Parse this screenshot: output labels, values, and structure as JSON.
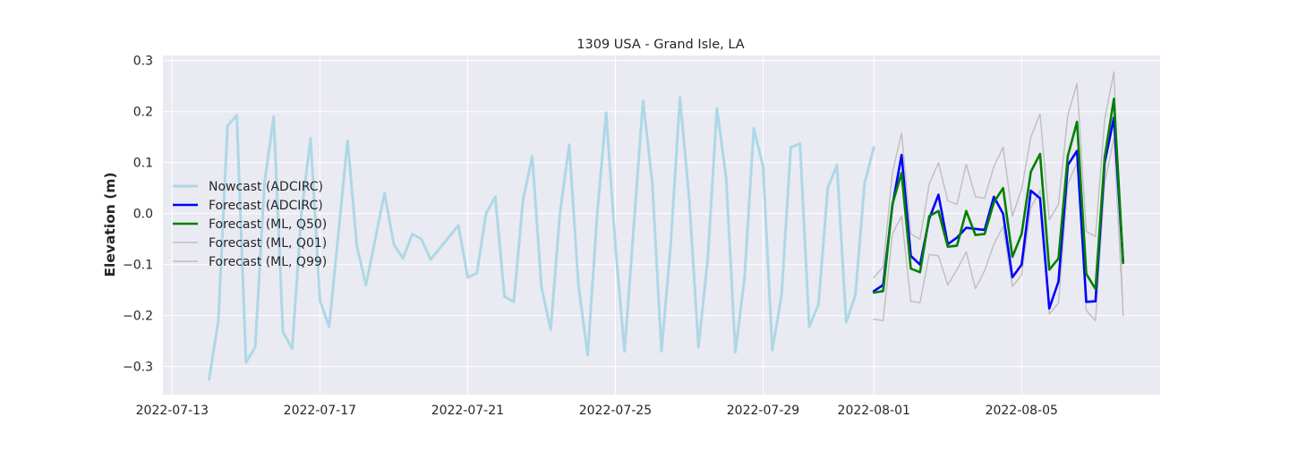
{
  "chart_data": {
    "type": "line",
    "title": "1309 USA - Grand Isle, LA",
    "xlabel": "",
    "ylabel": "Elevation (m)",
    "x_range": [
      "2022-07-12T18:00",
      "2022-08-08T18:00"
    ],
    "ylim": [
      -0.355,
      0.31
    ],
    "x_tick_labels": [
      "2022-07-13",
      "2022-07-17",
      "2022-07-21",
      "2022-07-25",
      "2022-07-29",
      "2022-08-01",
      "2022-08-05"
    ],
    "y_tick_labels": [
      "0.3",
      "0.2",
      "0.1",
      "0.0",
      "−0.1",
      "−0.2",
      "−0.3"
    ],
    "y_ticks": [
      0.3,
      0.2,
      0.1,
      0.0,
      -0.1,
      -0.2,
      -0.3
    ],
    "grid": true,
    "legend_position": "center-left",
    "colors": {
      "background": "#eaeaf2",
      "grid": "#ffffff",
      "nowcast": "#add8e6",
      "forecast_adcirc": "#0000ff",
      "forecast_ml_q50": "#008000",
      "forecast_ml_q01": "#bebebe",
      "forecast_ml_q99": "#bebebe"
    },
    "series": [
      {
        "name": "Nowcast (ADCIRC)",
        "key": "nowcast",
        "line_width": 3,
        "points": [
          [
            "2022-07-14T00:00",
            -0.325
          ],
          [
            "2022-07-14T06:00",
            -0.21
          ],
          [
            "2022-07-14T12:00",
            0.172
          ],
          [
            "2022-07-14T18:00",
            0.193
          ],
          [
            "2022-07-15T00:00",
            -0.292
          ],
          [
            "2022-07-15T06:00",
            -0.262
          ],
          [
            "2022-07-15T12:00",
            0.06
          ],
          [
            "2022-07-15T18:00",
            0.19
          ],
          [
            "2022-07-16T00:00",
            -0.232
          ],
          [
            "2022-07-16T06:00",
            -0.265
          ],
          [
            "2022-07-16T12:00",
            0.0
          ],
          [
            "2022-07-16T18:00",
            0.148
          ],
          [
            "2022-07-17T00:00",
            -0.17
          ],
          [
            "2022-07-17T06:00",
            -0.222
          ],
          [
            "2022-07-17T18:00",
            0.143
          ],
          [
            "2022-07-18T00:00",
            -0.063
          ],
          [
            "2022-07-18T06:00",
            -0.14
          ],
          [
            "2022-07-18T18:00",
            0.04
          ],
          [
            "2022-07-19T00:00",
            -0.06
          ],
          [
            "2022-07-19T06:00",
            -0.088
          ],
          [
            "2022-07-19T12:00",
            -0.04
          ],
          [
            "2022-07-19T18:00",
            -0.05
          ],
          [
            "2022-07-20T00:00",
            -0.09
          ],
          [
            "2022-07-20T18:00",
            -0.023
          ],
          [
            "2022-07-21T00:00",
            -0.125
          ],
          [
            "2022-07-21T06:00",
            -0.117
          ],
          [
            "2022-07-21T12:00",
            0.0
          ],
          [
            "2022-07-21T18:00",
            0.033
          ],
          [
            "2022-07-22T00:00",
            -0.163
          ],
          [
            "2022-07-22T06:00",
            -0.173
          ],
          [
            "2022-07-22T12:00",
            0.027
          ],
          [
            "2022-07-22T18:00",
            0.112
          ],
          [
            "2022-07-23T00:00",
            -0.145
          ],
          [
            "2022-07-23T06:00",
            -0.228
          ],
          [
            "2022-07-23T12:00",
            0.0
          ],
          [
            "2022-07-23T18:00",
            0.135
          ],
          [
            "2022-07-24T00:00",
            -0.14
          ],
          [
            "2022-07-24T06:00",
            -0.278
          ],
          [
            "2022-07-24T12:00",
            -0.01
          ],
          [
            "2022-07-24T18:00",
            0.198
          ],
          [
            "2022-07-25T00:00",
            -0.06
          ],
          [
            "2022-07-25T06:00",
            -0.27
          ],
          [
            "2022-07-25T18:00",
            0.222
          ],
          [
            "2022-07-26T00:00",
            0.06
          ],
          [
            "2022-07-26T06:00",
            -0.27
          ],
          [
            "2022-07-26T12:00",
            -0.06
          ],
          [
            "2022-07-26T18:00",
            0.228
          ],
          [
            "2022-07-27T00:00",
            0.03
          ],
          [
            "2022-07-27T06:00",
            -0.262
          ],
          [
            "2022-07-27T12:00",
            -0.09
          ],
          [
            "2022-07-27T18:00",
            0.206
          ],
          [
            "2022-07-28T00:00",
            0.07
          ],
          [
            "2022-07-28T06:00",
            -0.272
          ],
          [
            "2022-07-28T12:00",
            -0.125
          ],
          [
            "2022-07-28T18:00",
            0.167
          ],
          [
            "2022-07-29T00:00",
            0.092
          ],
          [
            "2022-07-29T06:00",
            -0.268
          ],
          [
            "2022-07-29T12:00",
            -0.16
          ],
          [
            "2022-07-29T18:00",
            0.13
          ],
          [
            "2022-07-30T00:00",
            0.137
          ],
          [
            "2022-07-30T06:00",
            -0.222
          ],
          [
            "2022-07-30T12:00",
            -0.178
          ],
          [
            "2022-07-30T18:00",
            0.05
          ],
          [
            "2022-07-31T00:00",
            0.095
          ],
          [
            "2022-07-31T06:00",
            -0.213
          ],
          [
            "2022-07-31T12:00",
            -0.16
          ],
          [
            "2022-07-31T18:00",
            0.06
          ],
          [
            "2022-08-01T00:00",
            0.13
          ]
        ]
      },
      {
        "name": "Forecast (ADCIRC)",
        "key": "forecast_adcirc",
        "line_width": 2.6,
        "points": [
          [
            "2022-08-01T00:00",
            -0.152
          ],
          [
            "2022-08-01T06:00",
            -0.14
          ],
          [
            "2022-08-01T12:00",
            0.015
          ],
          [
            "2022-08-01T18:00",
            0.115
          ],
          [
            "2022-08-02T00:00",
            -0.083
          ],
          [
            "2022-08-02T06:00",
            -0.1
          ],
          [
            "2022-08-02T12:00",
            -0.01
          ],
          [
            "2022-08-02T18:00",
            0.037
          ],
          [
            "2022-08-03T00:00",
            -0.06
          ],
          [
            "2022-08-03T06:00",
            -0.047
          ],
          [
            "2022-08-03T12:00",
            -0.028
          ],
          [
            "2022-08-03T18:00",
            -0.03
          ],
          [
            "2022-08-04T00:00",
            -0.032
          ],
          [
            "2022-08-04T06:00",
            0.033
          ],
          [
            "2022-08-04T12:00",
            0.0
          ],
          [
            "2022-08-04T18:00",
            -0.125
          ],
          [
            "2022-08-05T00:00",
            -0.1
          ],
          [
            "2022-08-05T06:00",
            0.045
          ],
          [
            "2022-08-05T12:00",
            0.03
          ],
          [
            "2022-08-05T18:00",
            -0.186
          ],
          [
            "2022-08-06T00:00",
            -0.133
          ],
          [
            "2022-08-06T06:00",
            0.095
          ],
          [
            "2022-08-06T12:00",
            0.123
          ],
          [
            "2022-08-06T18:00",
            -0.173
          ],
          [
            "2022-08-07T00:00",
            -0.172
          ],
          [
            "2022-08-07T06:00",
            0.1
          ],
          [
            "2022-08-07T12:00",
            0.188
          ],
          [
            "2022-08-07T18:00",
            -0.095
          ]
        ]
      },
      {
        "name": "Forecast (ML, Q50)",
        "key": "forecast_ml_q50",
        "line_width": 2.6,
        "points": [
          [
            "2022-08-01T00:00",
            -0.155
          ],
          [
            "2022-08-01T06:00",
            -0.152
          ],
          [
            "2022-08-01T12:00",
            0.018
          ],
          [
            "2022-08-01T18:00",
            0.08
          ],
          [
            "2022-08-02T00:00",
            -0.108
          ],
          [
            "2022-08-02T06:00",
            -0.115
          ],
          [
            "2022-08-02T12:00",
            -0.005
          ],
          [
            "2022-08-02T18:00",
            0.005
          ],
          [
            "2022-08-03T00:00",
            -0.065
          ],
          [
            "2022-08-03T06:00",
            -0.063
          ],
          [
            "2022-08-03T12:00",
            0.005
          ],
          [
            "2022-08-03T18:00",
            -0.042
          ],
          [
            "2022-08-04T00:00",
            -0.04
          ],
          [
            "2022-08-04T06:00",
            0.022
          ],
          [
            "2022-08-04T12:00",
            0.05
          ],
          [
            "2022-08-04T18:00",
            -0.085
          ],
          [
            "2022-08-05T00:00",
            -0.04
          ],
          [
            "2022-08-05T06:00",
            0.082
          ],
          [
            "2022-08-05T12:00",
            0.117
          ],
          [
            "2022-08-05T18:00",
            -0.11
          ],
          [
            "2022-08-06T00:00",
            -0.088
          ],
          [
            "2022-08-06T06:00",
            0.113
          ],
          [
            "2022-08-06T12:00",
            0.18
          ],
          [
            "2022-08-06T18:00",
            -0.118
          ],
          [
            "2022-08-07T00:00",
            -0.148
          ],
          [
            "2022-08-07T06:00",
            0.11
          ],
          [
            "2022-08-07T12:00",
            0.225
          ],
          [
            "2022-08-07T18:00",
            -0.097
          ]
        ]
      },
      {
        "name": "Forecast (ML, Q01)",
        "key": "forecast_ml_q01",
        "line_width": 1.4,
        "points": [
          [
            "2022-08-01T00:00",
            -0.207
          ],
          [
            "2022-08-01T06:00",
            -0.21
          ],
          [
            "2022-08-01T12:00",
            -0.04
          ],
          [
            "2022-08-01T18:00",
            -0.005
          ],
          [
            "2022-08-02T00:00",
            -0.172
          ],
          [
            "2022-08-02T06:00",
            -0.175
          ],
          [
            "2022-08-02T12:00",
            -0.08
          ],
          [
            "2022-08-02T18:00",
            -0.083
          ],
          [
            "2022-08-03T00:00",
            -0.14
          ],
          [
            "2022-08-03T06:00",
            -0.11
          ],
          [
            "2022-08-03T12:00",
            -0.075
          ],
          [
            "2022-08-03T18:00",
            -0.147
          ],
          [
            "2022-08-04T00:00",
            -0.112
          ],
          [
            "2022-08-04T06:00",
            -0.06
          ],
          [
            "2022-08-04T12:00",
            -0.025
          ],
          [
            "2022-08-04T18:00",
            -0.143
          ],
          [
            "2022-08-05T00:00",
            -0.12
          ],
          [
            "2022-08-05T06:00",
            0.012
          ],
          [
            "2022-08-05T12:00",
            0.045
          ],
          [
            "2022-08-05T18:00",
            -0.197
          ],
          [
            "2022-08-06T00:00",
            -0.175
          ],
          [
            "2022-08-06T06:00",
            0.058
          ],
          [
            "2022-08-06T12:00",
            0.1
          ],
          [
            "2022-08-06T18:00",
            -0.19
          ],
          [
            "2022-08-07T00:00",
            -0.21
          ],
          [
            "2022-08-07T06:00",
            0.06
          ],
          [
            "2022-08-07T12:00",
            0.148
          ],
          [
            "2022-08-07T18:00",
            -0.198
          ]
        ]
      },
      {
        "name": "Forecast (ML, Q99)",
        "key": "forecast_ml_q99",
        "line_width": 1.4,
        "points": [
          [
            "2022-08-01T00:00",
            -0.125
          ],
          [
            "2022-08-01T06:00",
            -0.105
          ],
          [
            "2022-08-01T12:00",
            0.08
          ],
          [
            "2022-08-01T18:00",
            0.158
          ],
          [
            "2022-08-02T00:00",
            -0.04
          ],
          [
            "2022-08-02T06:00",
            -0.05
          ],
          [
            "2022-08-02T12:00",
            0.058
          ],
          [
            "2022-08-02T18:00",
            0.1
          ],
          [
            "2022-08-03T00:00",
            0.025
          ],
          [
            "2022-08-03T06:00",
            0.018
          ],
          [
            "2022-08-03T12:00",
            0.097
          ],
          [
            "2022-08-03T18:00",
            0.033
          ],
          [
            "2022-08-04T00:00",
            0.03
          ],
          [
            "2022-08-04T06:00",
            0.092
          ],
          [
            "2022-08-04T12:00",
            0.13
          ],
          [
            "2022-08-04T18:00",
            -0.005
          ],
          [
            "2022-08-05T00:00",
            0.048
          ],
          [
            "2022-08-05T06:00",
            0.15
          ],
          [
            "2022-08-05T12:00",
            0.195
          ],
          [
            "2022-08-05T18:00",
            -0.012
          ],
          [
            "2022-08-06T00:00",
            0.018
          ],
          [
            "2022-08-06T06:00",
            0.193
          ],
          [
            "2022-08-06T12:00",
            0.255
          ],
          [
            "2022-08-06T18:00",
            -0.035
          ],
          [
            "2022-08-07T00:00",
            -0.045
          ],
          [
            "2022-08-07T06:00",
            0.185
          ],
          [
            "2022-08-07T12:00",
            0.278
          ],
          [
            "2022-08-07T18:00",
            -0.2
          ]
        ]
      }
    ]
  }
}
